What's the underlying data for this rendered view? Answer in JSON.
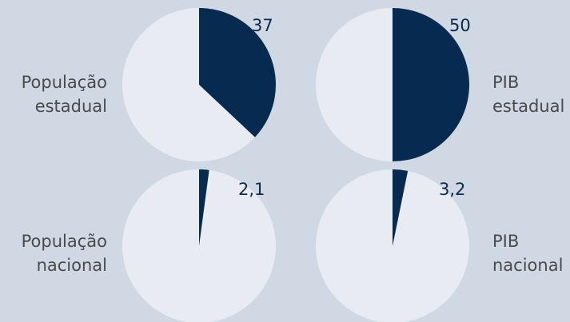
{
  "colors": {
    "background": "#cfd8e3",
    "share": "#062a50",
    "rest": "#e8ecf2",
    "label_text": "#4a4a4a",
    "value_text": "#0c2a4d"
  },
  "chart_data": [
    {
      "type": "pie",
      "category": "População estadual",
      "label_line1": "População",
      "label_line2": "estadual",
      "value": 37,
      "value_label": "37",
      "total": 100
    },
    {
      "type": "pie",
      "category": "PIB estadual",
      "label_line1": "PIB",
      "label_line2": "estadual",
      "value": 50,
      "value_label": "50",
      "total": 100
    },
    {
      "type": "pie",
      "category": "População nacional",
      "label_line1": "População",
      "label_line2": "nacional",
      "value": 2.1,
      "value_label": "2,1",
      "total": 100
    },
    {
      "type": "pie",
      "category": "PIB nacional",
      "label_line1": "PIB",
      "label_line2": "nacional",
      "value": 3.2,
      "value_label": "3,2",
      "total": 100
    }
  ]
}
